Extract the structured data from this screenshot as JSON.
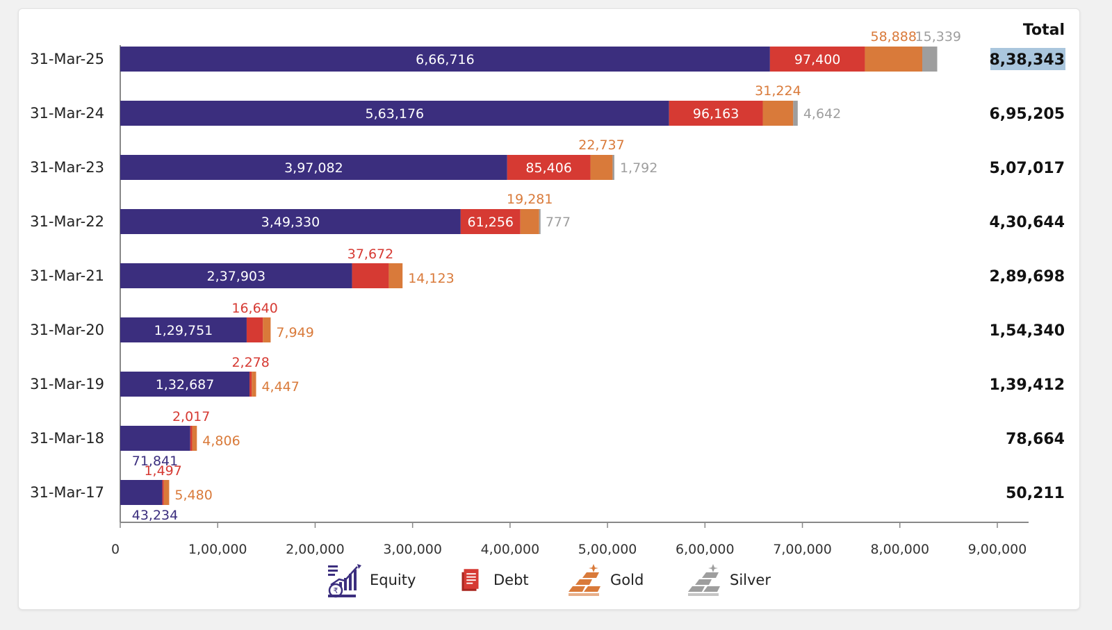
{
  "colors": {
    "equity": "#3b2e7e",
    "debt": "#d63a33",
    "gold": "#d97a3a",
    "silver": "#9e9e9e",
    "total_highlight": "#aac6dd"
  },
  "total_header": "Total",
  "chart_data": {
    "type": "bar",
    "orientation": "horizontal",
    "stacked": true,
    "categories": [
      "31-Mar-25",
      "31-Mar-24",
      "31-Mar-23",
      "31-Mar-22",
      "31-Mar-21",
      "31-Mar-20",
      "31-Mar-19",
      "31-Mar-18",
      "31-Mar-17"
    ],
    "series": [
      {
        "name": "Equity",
        "key": "equity",
        "values": [
          666716,
          563176,
          397082,
          349330,
          237903,
          129751,
          132687,
          71841,
          43234
        ],
        "labels": [
          "6,66,716",
          "5,63,176",
          "3,97,082",
          "3,49,330",
          "2,37,903",
          "1,29,751",
          "1,32,687",
          "71,841",
          "43,234"
        ]
      },
      {
        "name": "Debt",
        "key": "debt",
        "values": [
          97400,
          96163,
          85406,
          61256,
          37672,
          16640,
          2278,
          2017,
          1497
        ],
        "labels": [
          "97,400",
          "96,163",
          "85,406",
          "61,256",
          "37,672",
          "16,640",
          "2,278",
          "2,017",
          "1,497"
        ]
      },
      {
        "name": "Gold",
        "key": "gold",
        "values": [
          58888,
          31224,
          22737,
          19281,
          14123,
          7949,
          4447,
          4806,
          5480
        ],
        "labels": [
          "58,888",
          "31,224",
          "22,737",
          "19,281",
          "14,123",
          "7,949",
          "4,447",
          "4,806",
          "5,480"
        ]
      },
      {
        "name": "Silver",
        "key": "silver",
        "values": [
          15339,
          4642,
          1792,
          777,
          0,
          0,
          0,
          0,
          0
        ],
        "labels": [
          "15,339",
          "4,642",
          "1,792",
          "777",
          "",
          "",
          "",
          "",
          ""
        ]
      }
    ],
    "totals": [
      "8,38,343",
      "6,95,205",
      "5,07,017",
      "4,30,644",
      "2,89,698",
      "1,54,340",
      "1,39,412",
      "78,664",
      "50,211"
    ],
    "xlim": [
      0,
      900000
    ],
    "xticks": [
      0,
      100000,
      200000,
      300000,
      400000,
      500000,
      600000,
      700000,
      800000,
      900000
    ],
    "xtick_labels": [
      "0",
      "1,00,000",
      "2,00,000",
      "3,00,000",
      "4,00,000",
      "5,00,000",
      "6,00,000",
      "7,00,000",
      "8,00,000",
      "9,00,000"
    ],
    "legend_position": "bottom",
    "grid": false
  },
  "legend": [
    {
      "label": "Equity",
      "icon": "equity-chart-rupee-icon"
    },
    {
      "label": "Debt",
      "icon": "debt-document-icon"
    },
    {
      "label": "Gold",
      "icon": "gold-bars-icon"
    },
    {
      "label": "Silver",
      "icon": "silver-bars-icon"
    }
  ]
}
